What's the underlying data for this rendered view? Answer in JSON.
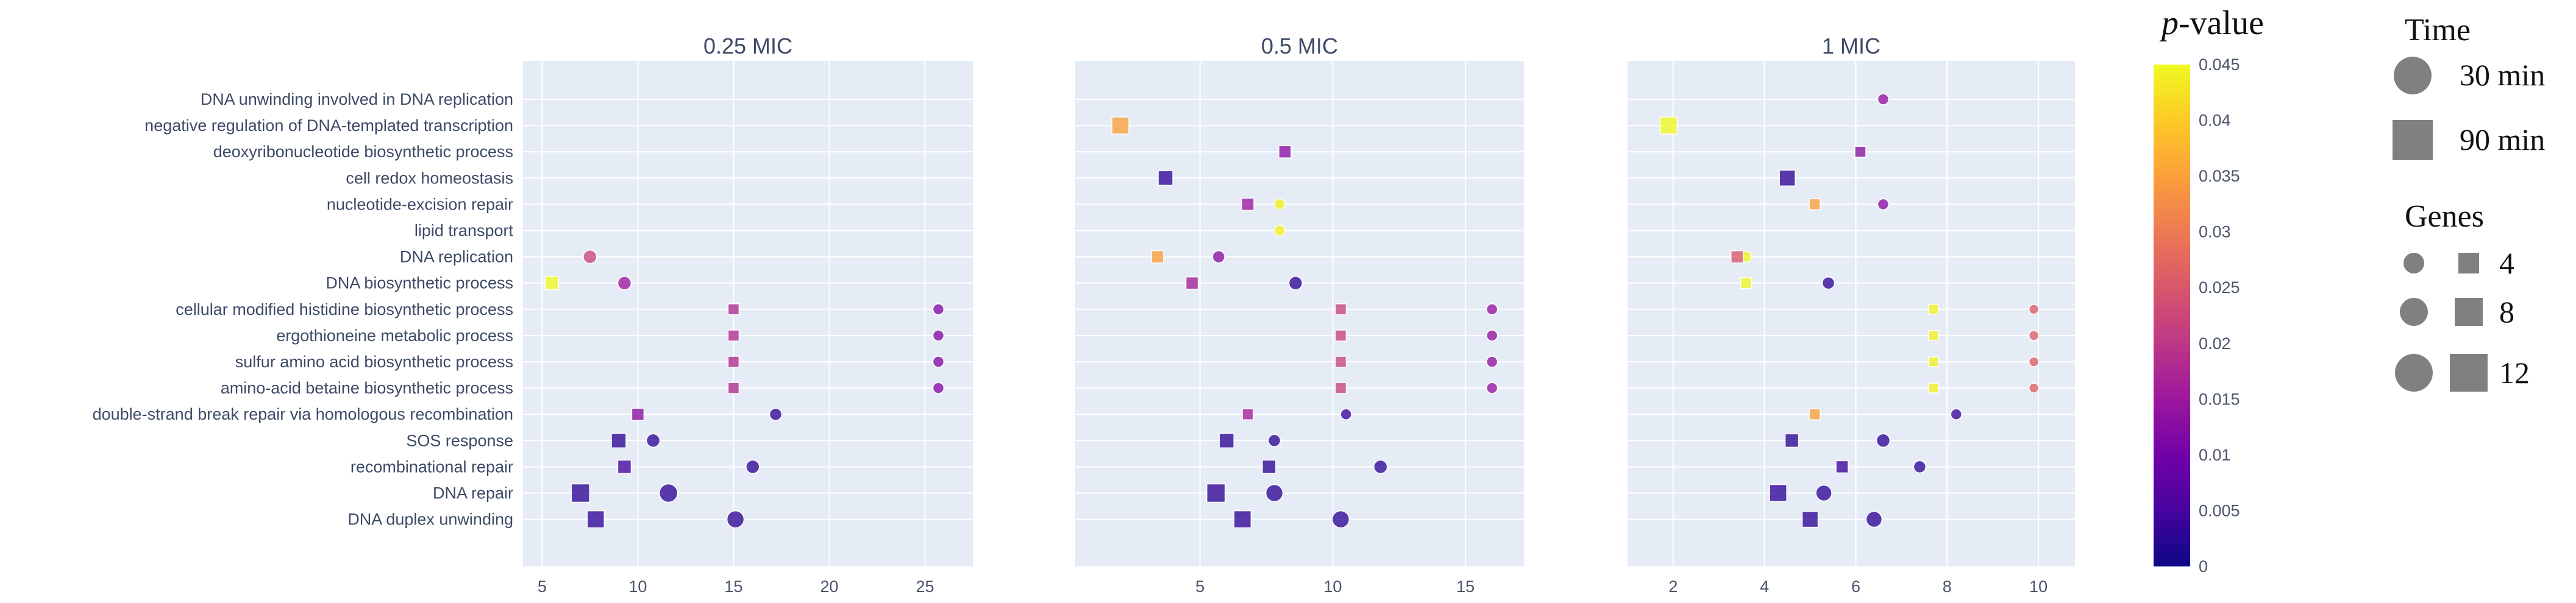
{
  "chart_data": {
    "type": "scatter",
    "categories": [
      "DNA unwinding involved in DNA replication",
      "negative regulation of DNA-templated transcription",
      "deoxyribonucleotide biosynthetic process",
      "cell redox homeostasis",
      "nucleotide-excision repair",
      "lipid transport",
      "DNA replication",
      "DNA biosynthetic process",
      "cellular modified histidine biosynthetic process",
      "ergothioneine metabolic process",
      "sulfur amino acid biosynthetic process",
      "amino-acid betaine biosynthetic process",
      "double-strand break repair via homologous recombination",
      "SOS response",
      "recombinational repair",
      "DNA repair",
      "DNA duplex unwinding"
    ],
    "panels": [
      {
        "title": "0.25 MIC",
        "xlim": [
          4,
          27.5
        ],
        "xticks": [
          5,
          10,
          15,
          20,
          25
        ],
        "points": [
          {
            "cat": 6,
            "x": 7.5,
            "time": "30 min",
            "genes": 7,
            "p": 0.022
          },
          {
            "cat": 7,
            "x": 5.5,
            "time": "90 min",
            "genes": 7,
            "p": 0.045
          },
          {
            "cat": 7,
            "x": 9.3,
            "time": "30 min",
            "genes": 7,
            "p": 0.015
          },
          {
            "cat": 8,
            "x": 15.0,
            "time": "90 min",
            "genes": 5,
            "p": 0.018
          },
          {
            "cat": 8,
            "x": 25.7,
            "time": "30 min",
            "genes": 5,
            "p": 0.012
          },
          {
            "cat": 9,
            "x": 15.0,
            "time": "90 min",
            "genes": 5,
            "p": 0.018
          },
          {
            "cat": 9,
            "x": 25.7,
            "time": "30 min",
            "genes": 5,
            "p": 0.012
          },
          {
            "cat": 10,
            "x": 15.0,
            "time": "90 min",
            "genes": 5,
            "p": 0.018
          },
          {
            "cat": 10,
            "x": 25.7,
            "time": "30 min",
            "genes": 5,
            "p": 0.012
          },
          {
            "cat": 11,
            "x": 15.0,
            "time": "90 min",
            "genes": 5,
            "p": 0.018
          },
          {
            "cat": 11,
            "x": 25.7,
            "time": "30 min",
            "genes": 5,
            "p": 0.012
          },
          {
            "cat": 12,
            "x": 10.0,
            "time": "90 min",
            "genes": 6,
            "p": 0.013
          },
          {
            "cat": 12,
            "x": 17.2,
            "time": "30 min",
            "genes": 6,
            "p": 0.003
          },
          {
            "cat": 13,
            "x": 9.0,
            "time": "90 min",
            "genes": 8,
            "p": 0.003
          },
          {
            "cat": 13,
            "x": 10.8,
            "time": "30 min",
            "genes": 7,
            "p": 0.003
          },
          {
            "cat": 14,
            "x": 9.3,
            "time": "90 min",
            "genes": 7,
            "p": 0.005
          },
          {
            "cat": 14,
            "x": 16.0,
            "time": "30 min",
            "genes": 7,
            "p": 0.003
          },
          {
            "cat": 15,
            "x": 7.0,
            "time": "90 min",
            "genes": 11,
            "p": 0.003
          },
          {
            "cat": 15,
            "x": 11.6,
            "time": "30 min",
            "genes": 11,
            "p": 0.003
          },
          {
            "cat": 16,
            "x": 7.8,
            "time": "90 min",
            "genes": 10,
            "p": 0.003
          },
          {
            "cat": 16,
            "x": 15.1,
            "time": "30 min",
            "genes": 10,
            "p": 0.003
          }
        ]
      },
      {
        "title": "0.5 MIC",
        "xlim": [
          0.3,
          17.2
        ],
        "xticks": [
          5,
          10,
          15
        ],
        "points": [
          {
            "cat": 1,
            "x": 2.0,
            "time": "90 min",
            "genes": 10,
            "p": 0.035
          },
          {
            "cat": 2,
            "x": 8.2,
            "time": "90 min",
            "genes": 6,
            "p": 0.013
          },
          {
            "cat": 3,
            "x": 3.7,
            "time": "90 min",
            "genes": 8,
            "p": 0.003
          },
          {
            "cat": 4,
            "x": 6.8,
            "time": "90 min",
            "genes": 6,
            "p": 0.015
          },
          {
            "cat": 4,
            "x": 8.0,
            "time": "30 min",
            "genes": 5,
            "p": 0.044
          },
          {
            "cat": 5,
            "x": 8.0,
            "time": "30 min",
            "genes": 5,
            "p": 0.044
          },
          {
            "cat": 6,
            "x": 3.4,
            "time": "90 min",
            "genes": 6,
            "p": 0.035
          },
          {
            "cat": 6,
            "x": 5.7,
            "time": "30 min",
            "genes": 6,
            "p": 0.013
          },
          {
            "cat": 7,
            "x": 4.7,
            "time": "90 min",
            "genes": 6,
            "p": 0.016
          },
          {
            "cat": 7,
            "x": 8.6,
            "time": "30 min",
            "genes": 7,
            "p": 0.003
          },
          {
            "cat": 8,
            "x": 10.3,
            "time": "90 min",
            "genes": 5,
            "p": 0.022
          },
          {
            "cat": 8,
            "x": 16.0,
            "time": "30 min",
            "genes": 5,
            "p": 0.014
          },
          {
            "cat": 9,
            "x": 10.3,
            "time": "90 min",
            "genes": 5,
            "p": 0.022
          },
          {
            "cat": 9,
            "x": 16.0,
            "time": "30 min",
            "genes": 5,
            "p": 0.014
          },
          {
            "cat": 10,
            "x": 10.3,
            "time": "90 min",
            "genes": 5,
            "p": 0.022
          },
          {
            "cat": 10,
            "x": 16.0,
            "time": "30 min",
            "genes": 5,
            "p": 0.014
          },
          {
            "cat": 11,
            "x": 10.3,
            "time": "90 min",
            "genes": 5,
            "p": 0.022
          },
          {
            "cat": 11,
            "x": 16.0,
            "time": "30 min",
            "genes": 5,
            "p": 0.014
          },
          {
            "cat": 12,
            "x": 6.8,
            "time": "90 min",
            "genes": 5,
            "p": 0.016
          },
          {
            "cat": 12,
            "x": 10.5,
            "time": "30 min",
            "genes": 5,
            "p": 0.004
          },
          {
            "cat": 13,
            "x": 6.0,
            "time": "90 min",
            "genes": 8,
            "p": 0.003
          },
          {
            "cat": 13,
            "x": 7.8,
            "time": "30 min",
            "genes": 6,
            "p": 0.003
          },
          {
            "cat": 14,
            "x": 7.6,
            "time": "90 min",
            "genes": 7,
            "p": 0.003
          },
          {
            "cat": 14,
            "x": 11.8,
            "time": "30 min",
            "genes": 7,
            "p": 0.003
          },
          {
            "cat": 15,
            "x": 5.6,
            "time": "90 min",
            "genes": 11,
            "p": 0.003
          },
          {
            "cat": 15,
            "x": 7.8,
            "time": "30 min",
            "genes": 10,
            "p": 0.003
          },
          {
            "cat": 16,
            "x": 6.6,
            "time": "90 min",
            "genes": 10,
            "p": 0.003
          },
          {
            "cat": 16,
            "x": 10.3,
            "time": "30 min",
            "genes": 10,
            "p": 0.003
          }
        ]
      },
      {
        "title": "1 MIC",
        "xlim": [
          1.0,
          10.8
        ],
        "xticks": [
          2,
          4,
          6,
          8,
          10
        ],
        "points": [
          {
            "cat": 0,
            "x": 6.6,
            "time": "30 min",
            "genes": 5,
            "p": 0.014
          },
          {
            "cat": 1,
            "x": 1.9,
            "time": "90 min",
            "genes": 10,
            "p": 0.045
          },
          {
            "cat": 2,
            "x": 6.1,
            "time": "90 min",
            "genes": 5,
            "p": 0.013
          },
          {
            "cat": 3,
            "x": 4.5,
            "time": "90 min",
            "genes": 9,
            "p": 0.003
          },
          {
            "cat": 4,
            "x": 5.1,
            "time": "90 min",
            "genes": 5,
            "p": 0.035
          },
          {
            "cat": 4,
            "x": 6.6,
            "time": "30 min",
            "genes": 5,
            "p": 0.013
          },
          {
            "cat": 6,
            "x": 3.6,
            "time": "30 min",
            "genes": 5,
            "p": 0.045
          },
          {
            "cat": 6,
            "x": 3.4,
            "time": "90 min",
            "genes": 6,
            "p": 0.025
          },
          {
            "cat": 7,
            "x": 3.6,
            "time": "90 min",
            "genes": 5,
            "p": 0.045
          },
          {
            "cat": 7,
            "x": 5.4,
            "time": "30 min",
            "genes": 6,
            "p": 0.003
          },
          {
            "cat": 8,
            "x": 7.7,
            "time": "90 min",
            "genes": 4,
            "p": 0.044
          },
          {
            "cat": 8,
            "x": 9.9,
            "time": "30 min",
            "genes": 4,
            "p": 0.026
          },
          {
            "cat": 9,
            "x": 7.7,
            "time": "90 min",
            "genes": 4,
            "p": 0.044
          },
          {
            "cat": 9,
            "x": 9.9,
            "time": "30 min",
            "genes": 4,
            "p": 0.026
          },
          {
            "cat": 10,
            "x": 7.7,
            "time": "90 min",
            "genes": 4,
            "p": 0.044
          },
          {
            "cat": 10,
            "x": 9.9,
            "time": "30 min",
            "genes": 4,
            "p": 0.026
          },
          {
            "cat": 11,
            "x": 7.7,
            "time": "90 min",
            "genes": 4,
            "p": 0.044
          },
          {
            "cat": 11,
            "x": 9.9,
            "time": "30 min",
            "genes": 4,
            "p": 0.026
          },
          {
            "cat": 12,
            "x": 5.1,
            "time": "90 min",
            "genes": 5,
            "p": 0.035
          },
          {
            "cat": 12,
            "x": 8.2,
            "time": "30 min",
            "genes": 5,
            "p": 0.004
          },
          {
            "cat": 13,
            "x": 4.6,
            "time": "90 min",
            "genes": 7,
            "p": 0.003
          },
          {
            "cat": 13,
            "x": 6.6,
            "time": "30 min",
            "genes": 7,
            "p": 0.003
          },
          {
            "cat": 14,
            "x": 5.7,
            "time": "90 min",
            "genes": 6,
            "p": 0.004
          },
          {
            "cat": 14,
            "x": 7.4,
            "time": "30 min",
            "genes": 6,
            "p": 0.003
          },
          {
            "cat": 15,
            "x": 4.3,
            "time": "90 min",
            "genes": 10,
            "p": 0.003
          },
          {
            "cat": 15,
            "x": 5.3,
            "time": "30 min",
            "genes": 9,
            "p": 0.003
          },
          {
            "cat": 16,
            "x": 5.0,
            "time": "90 min",
            "genes": 9,
            "p": 0.003
          },
          {
            "cat": 16,
            "x": 6.4,
            "time": "30 min",
            "genes": 9,
            "p": 0.003
          }
        ]
      }
    ],
    "colorbar": {
      "title_italic": "p",
      "title_rest": "-value",
      "range": [
        0,
        0.045
      ],
      "ticks": [
        0,
        0.005,
        0.01,
        0.015,
        0.02,
        0.025,
        0.03,
        0.035,
        0.04,
        0.045
      ],
      "tick_labels": [
        "0",
        "0.005",
        "0.01",
        "0.015",
        "0.02",
        "0.025",
        "0.03",
        "0.035",
        "0.04",
        "0.045"
      ],
      "colorscale": [
        "#0d0887",
        "#46039f",
        "#7201a8",
        "#9c179e",
        "#bd3786",
        "#d8576b",
        "#ed7953",
        "#fb9f3a",
        "#fdca26",
        "#f0f921"
      ]
    },
    "legend": {
      "time_title": "Time",
      "time_items": [
        "30 min",
        "90 min"
      ],
      "genes_title": "Genes",
      "genes_items": [
        4,
        8,
        12
      ]
    },
    "plot_background": "#e5ecf6"
  }
}
